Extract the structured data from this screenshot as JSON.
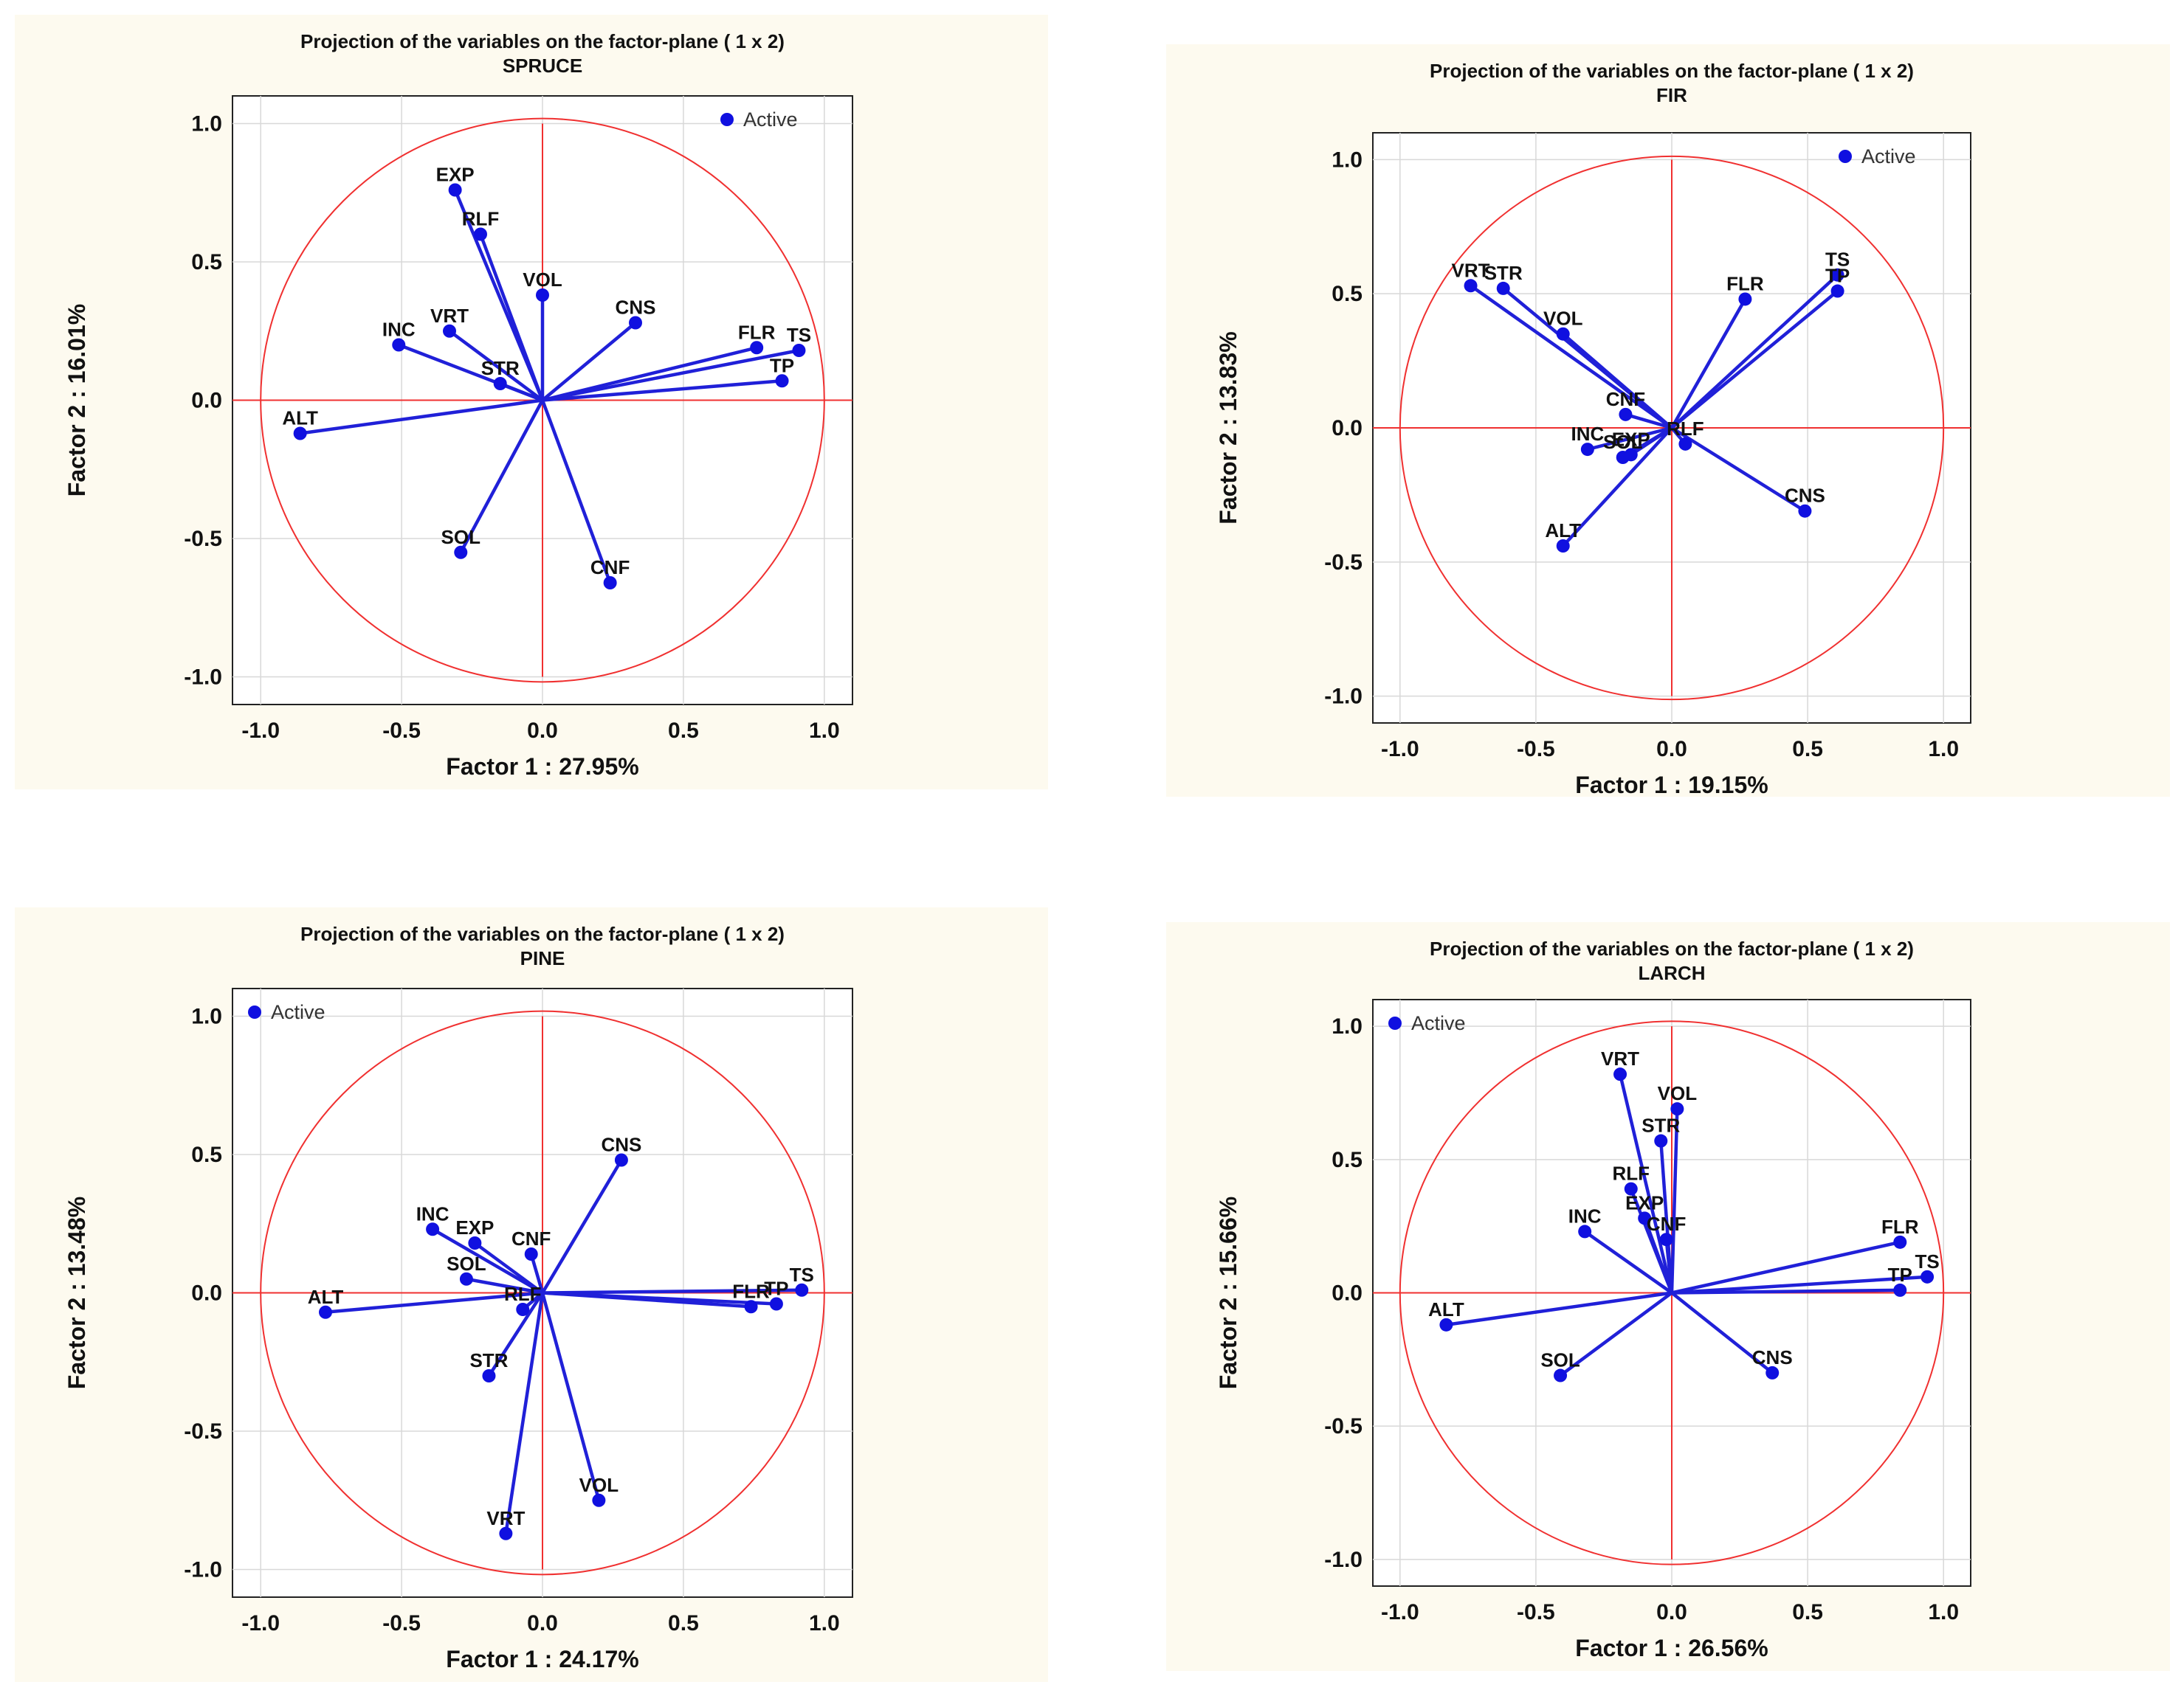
{
  "legend_label": "Active",
  "colors": {
    "panel_bg": "#fdfaef",
    "marker": "#1010e0",
    "vector": "#2020d8",
    "circle": "#f03030",
    "grid": "#d8d8d8",
    "text": "#111111"
  },
  "chart_data": [
    {
      "type": "scatter",
      "title": "Projection of the variables on the factor-plane (  1 x   2)",
      "subtitle": "SPRUCE",
      "xlabel": "Factor 1 : 27.95%",
      "ylabel": "Factor 2 : 16.01%",
      "xlim": [
        -1.1,
        1.1
      ],
      "ylim": [
        -1.1,
        1.1
      ],
      "xticks": [
        "-1.0",
        "-0.5",
        "0.0",
        "0.5",
        "1.0"
      ],
      "yticks": [
        "1.0",
        "0.5",
        "0.0",
        "-0.5",
        "-1.0"
      ],
      "legend": "top-right",
      "points": [
        {
          "label": "EXP",
          "x": -0.31,
          "y": 0.76
        },
        {
          "label": "RLF",
          "x": -0.22,
          "y": 0.6
        },
        {
          "label": "VOL",
          "x": 0.0,
          "y": 0.38
        },
        {
          "label": "INC",
          "x": -0.51,
          "y": 0.2
        },
        {
          "label": "VRT",
          "x": -0.33,
          "y": 0.25
        },
        {
          "label": "CNS",
          "x": 0.33,
          "y": 0.28
        },
        {
          "label": "FLR",
          "x": 0.76,
          "y": 0.19
        },
        {
          "label": "TS",
          "x": 0.91,
          "y": 0.18
        },
        {
          "label": "STR",
          "x": -0.15,
          "y": 0.06
        },
        {
          "label": "TP",
          "x": 0.85,
          "y": 0.07
        },
        {
          "label": "ALT",
          "x": -0.86,
          "y": -0.12
        },
        {
          "label": "SOL",
          "x": -0.29,
          "y": -0.55
        },
        {
          "label": "CNF",
          "x": 0.24,
          "y": -0.66
        }
      ]
    },
    {
      "type": "scatter",
      "title": "Projection of the variables on the factor-plane (  1 x   2)",
      "subtitle": "FIR",
      "xlabel": "Factor 1 : 19.15%",
      "ylabel": "Factor 2 : 13.83%",
      "xlim": [
        -1.1,
        1.1
      ],
      "ylim": [
        -1.1,
        1.1
      ],
      "xticks": [
        "-1.0",
        "-0.5",
        "0.0",
        "0.5",
        "1.0"
      ],
      "yticks": [
        "1.0",
        "0.5",
        "0.0",
        "-0.5",
        "-1.0"
      ],
      "legend": "top-right",
      "points": [
        {
          "label": "VRT",
          "x": -0.74,
          "y": 0.53
        },
        {
          "label": "STR",
          "x": -0.62,
          "y": 0.52
        },
        {
          "label": "VOL",
          "x": -0.4,
          "y": 0.35
        },
        {
          "label": "FLR",
          "x": 0.27,
          "y": 0.48
        },
        {
          "label": "TS",
          "x": 0.61,
          "y": 0.57
        },
        {
          "label": "TP",
          "x": 0.61,
          "y": 0.51
        },
        {
          "label": "CNF",
          "x": -0.17,
          "y": 0.05
        },
        {
          "label": "INC",
          "x": -0.31,
          "y": -0.08
        },
        {
          "label": "SOL",
          "x": -0.18,
          "y": -0.11
        },
        {
          "label": "EXP",
          "x": -0.15,
          "y": -0.1
        },
        {
          "label": "RLF",
          "x": 0.05,
          "y": -0.06
        },
        {
          "label": "CNS",
          "x": 0.49,
          "y": -0.31
        },
        {
          "label": "ALT",
          "x": -0.4,
          "y": -0.44
        }
      ]
    },
    {
      "type": "scatter",
      "title": "Projection of the variables on the factor-plane (  1 x   2)",
      "subtitle": "PINE",
      "xlabel": "Factor 1 : 24.17%",
      "ylabel": "Factor 2 : 13.48%",
      "xlim": [
        -1.1,
        1.1
      ],
      "ylim": [
        -1.1,
        1.1
      ],
      "xticks": [
        "-1.0",
        "-0.5",
        "0.0",
        "0.5",
        "1.0"
      ],
      "yticks": [
        "1.0",
        "0.5",
        "0.0",
        "-0.5",
        "-1.0"
      ],
      "legend": "top-left",
      "points": [
        {
          "label": "CNS",
          "x": 0.28,
          "y": 0.48
        },
        {
          "label": "INC",
          "x": -0.39,
          "y": 0.23
        },
        {
          "label": "EXP",
          "x": -0.24,
          "y": 0.18
        },
        {
          "label": "CNF",
          "x": -0.04,
          "y": 0.14
        },
        {
          "label": "SOL",
          "x": -0.27,
          "y": 0.05
        },
        {
          "label": "ALT",
          "x": -0.77,
          "y": -0.07
        },
        {
          "label": "RLF",
          "x": -0.07,
          "y": -0.06
        },
        {
          "label": "FLR",
          "x": 0.74,
          "y": -0.05
        },
        {
          "label": "TP",
          "x": 0.83,
          "y": -0.04
        },
        {
          "label": "TS",
          "x": 0.92,
          "y": 0.01
        },
        {
          "label": "STR",
          "x": -0.19,
          "y": -0.3
        },
        {
          "label": "VOL",
          "x": 0.2,
          "y": -0.75
        },
        {
          "label": "VRT",
          "x": -0.13,
          "y": -0.87
        }
      ]
    },
    {
      "type": "scatter",
      "title": "Projection of the variables on the factor-plane (  1 x   2)",
      "subtitle": "LARCH",
      "xlabel": "Factor 1 : 26.56%",
      "ylabel": "Factor 2 : 15.66%",
      "xlim": [
        -1.1,
        1.1
      ],
      "ylim": [
        -1.1,
        1.1
      ],
      "xticks": [
        "-1.0",
        "-0.5",
        "0.0",
        "0.5",
        "1.0"
      ],
      "yticks": [
        "1.0",
        "0.5",
        "0.0",
        "-0.5",
        "-1.0"
      ],
      "legend": "top-left",
      "points": [
        {
          "label": "VRT",
          "x": -0.19,
          "y": 0.82
        },
        {
          "label": "VOL",
          "x": 0.02,
          "y": 0.69
        },
        {
          "label": "STR",
          "x": -0.04,
          "y": 0.57
        },
        {
          "label": "RLF",
          "x": -0.15,
          "y": 0.39
        },
        {
          "label": "EXP",
          "x": -0.1,
          "y": 0.28
        },
        {
          "label": "CNF",
          "x": -0.02,
          "y": 0.2
        },
        {
          "label": "INC",
          "x": -0.32,
          "y": 0.23
        },
        {
          "label": "FLR",
          "x": 0.84,
          "y": 0.19
        },
        {
          "label": "TS",
          "x": 0.94,
          "y": 0.06
        },
        {
          "label": "TP",
          "x": 0.84,
          "y": 0.01
        },
        {
          "label": "ALT",
          "x": -0.83,
          "y": -0.12
        },
        {
          "label": "SOL",
          "x": -0.41,
          "y": -0.31
        },
        {
          "label": "CNS",
          "x": 0.37,
          "y": -0.3
        }
      ]
    }
  ]
}
